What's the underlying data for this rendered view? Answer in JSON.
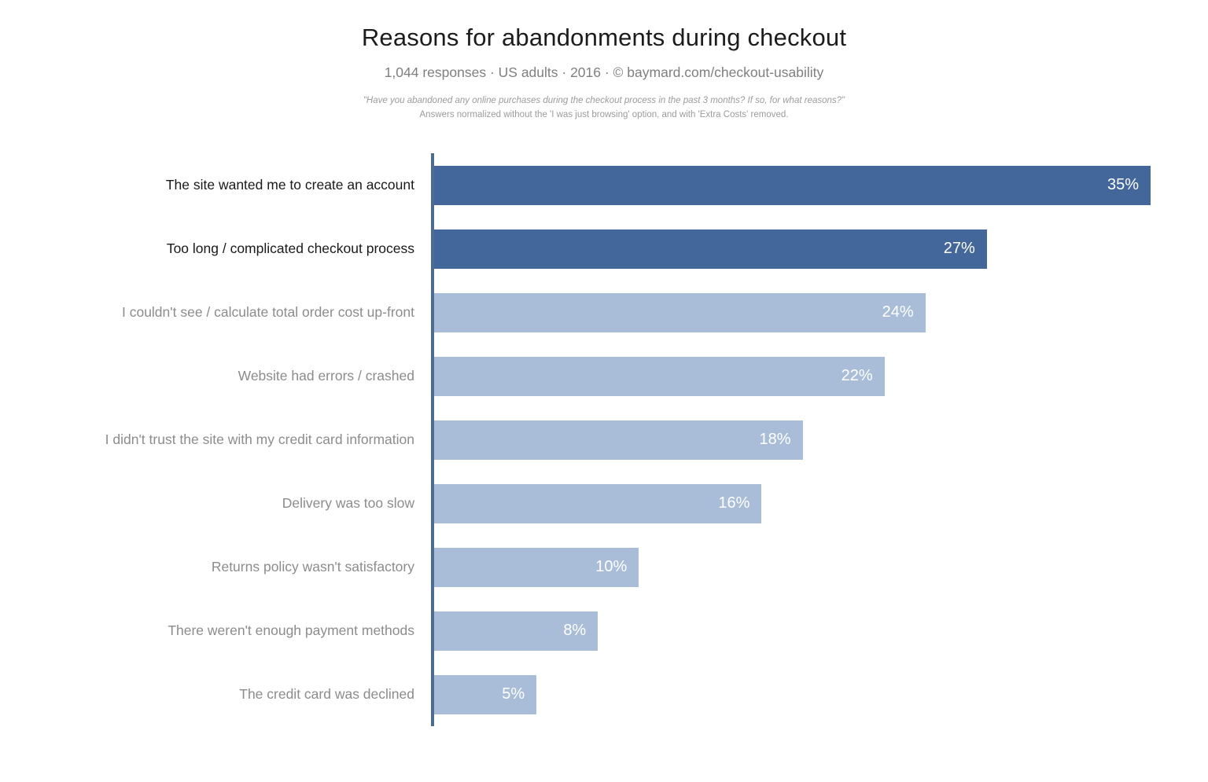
{
  "header": {
    "title": "Reasons for abandonments during checkout",
    "subtitle": "1,044 responses  ·  US adults  ·  2016  ·  ©  baymard.com/checkout-usability",
    "note_line1": "\"Have you abandoned any online purchases during the checkout process in the past 3 months? If so, for what reasons?\"",
    "note_line2": "Answers normalized without the 'I was just browsing' option, and with 'Extra Costs' removed."
  },
  "chart_data": {
    "type": "bar",
    "orientation": "horizontal",
    "title": "Reasons for abandonments during checkout",
    "subtitle": "1,044 responses · US adults · 2016 · © baymard.com/checkout-usability",
    "categories": [
      "The site wanted me to create an account",
      "Too long / complicated checkout process",
      "I couldn't see / calculate total order cost up-front",
      "Website had errors / crashed",
      "I didn't trust the site with my credit card information",
      "Delivery was too slow",
      "Returns policy wasn't satisfactory",
      "There weren't enough payment methods",
      "The credit card was declined"
    ],
    "values": [
      35,
      27,
      24,
      22,
      18,
      16,
      10,
      8,
      5
    ],
    "value_labels": [
      "35%",
      "27%",
      "24%",
      "22%",
      "18%",
      "16%",
      "10%",
      "8%",
      "5%"
    ],
    "emphasized": [
      true,
      true,
      false,
      false,
      false,
      false,
      false,
      false,
      false
    ],
    "xlim": [
      0,
      35
    ],
    "grid": false,
    "legend": "none",
    "colors": {
      "bar_dark": "#44679b",
      "bar_light": "#a9bdd8",
      "axis": "#4e6d8e",
      "label_dark": "#1a1a1a",
      "label_light": "#8c8c8c",
      "value_text": "#ffffff"
    }
  }
}
